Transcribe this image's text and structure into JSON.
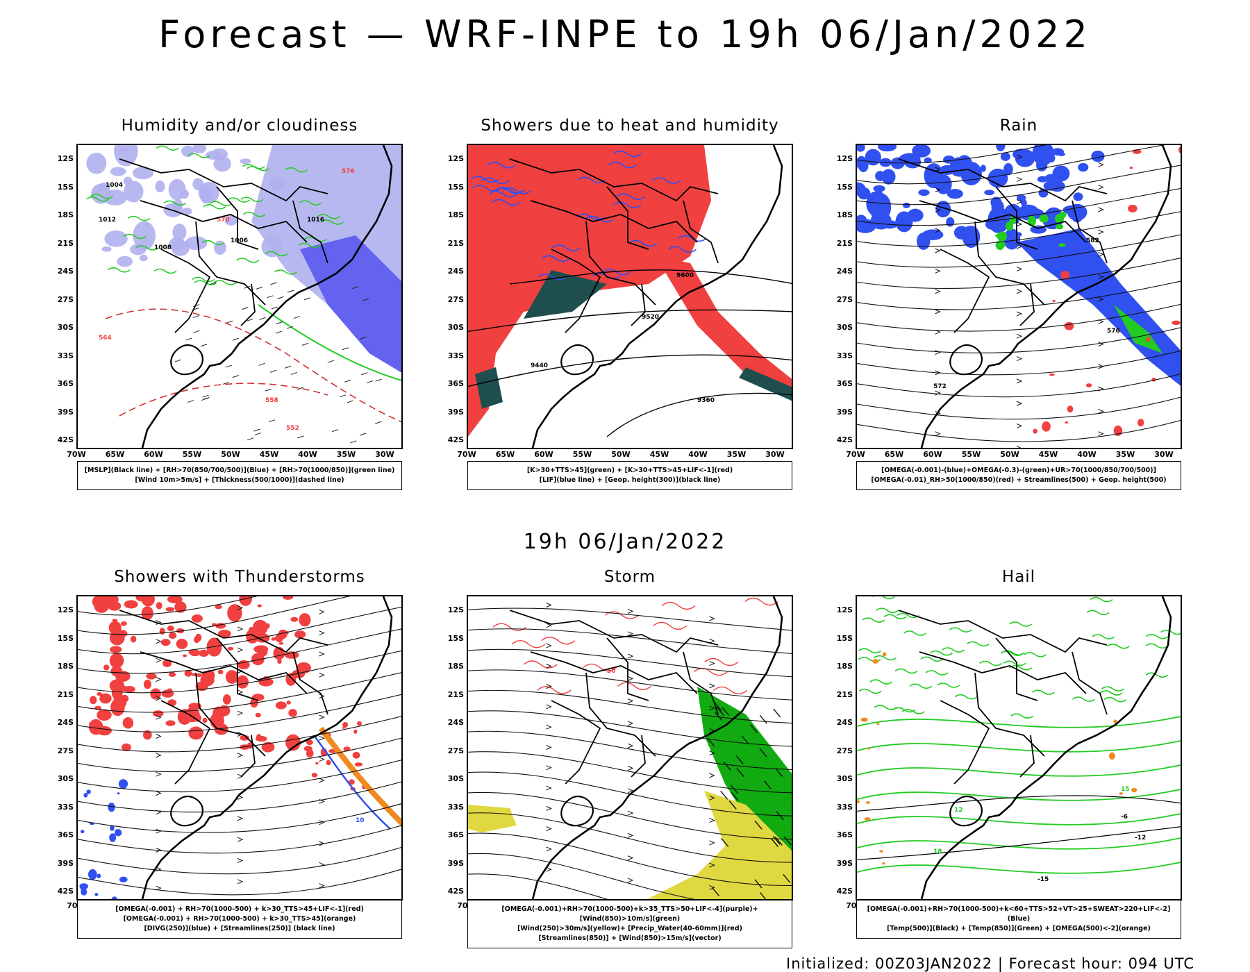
{
  "title": "Forecast — WRF-INPE to 19h 06/Jan/2022",
  "mid_title": "19h 06/Jan/2022",
  "footer": "Initialized: 00Z03JAN2022 | Forecast hour: 094 UTC",
  "axes": {
    "lat_labels": [
      "12S",
      "15S",
      "18S",
      "21S",
      "24S",
      "27S",
      "30S",
      "33S",
      "36S",
      "39S",
      "42S"
    ],
    "lon_labels": [
      "70W",
      "65W",
      "60W",
      "55W",
      "50W",
      "45W",
      "40W",
      "35W",
      "30W"
    ]
  },
  "panels": [
    {
      "id": "humidity",
      "title": "Humidity and/or cloudiness",
      "legend": [
        "[MSLP](Black line) + [RH>70(850/700/500)](Blue) + [RH>70(1000/850)](green line)",
        "[Wind 10m>5m/s] + [Thickness(500/1000)](dashed line)"
      ],
      "contour_labels": [
        "1004",
        "1012",
        "1008",
        "1016",
        "576",
        "570",
        "558",
        "564",
        "552",
        "1006"
      ]
    },
    {
      "id": "showers",
      "title": "Showers due to heat and humidity",
      "legend": [
        "[K>30+TTS>45](green) + [K>30+TTS>45+LIF<-1](red)",
        "[LIF](blue line) + [Geop. height(300)](black line)"
      ],
      "contour_labels": [
        "9600",
        "9520",
        "9440",
        "9360"
      ]
    },
    {
      "id": "rain",
      "title": "Rain",
      "legend": [
        "[OMEGA(-0.001)-(blue)+OMEGA(-0.3)-(green)+UR>70(1000/850/700/500)]",
        "[OMEGA(-0.01)_RH>50(1000/850)(red) + Streamlines(500) + Geop. height(500)"
      ],
      "contour_labels": [
        "582",
        "576",
        "572"
      ]
    },
    {
      "id": "thunder",
      "title": "Showers with Thunderstorms",
      "legend": [
        "[OMEGA(-0.001) + RH>70(1000-500) + k>30_TTS>45+LIF<-1](red)",
        "[OMEGA(-0.001) + RH>70(1000-500) + k>30_TTS>45](orange)",
        "[DIVG(250)](blue) + [Streamlines(250)] (black line)"
      ],
      "contour_labels": [
        "10"
      ]
    },
    {
      "id": "storm",
      "title": "Storm",
      "legend": [
        "[OMEGA(-0.001)+RH>70(1000-500)+k>35_TTS>50+LIF<-4](purple)+[Wind(850)>10m/s](green)",
        "[Wind(250)>30m/s](yellow)+ [Precip_Water(40-60mm)](red)",
        "[Streamlines(850)] + [Wind(850)>15m/s](vector)"
      ],
      "contour_labels": [
        "50"
      ]
    },
    {
      "id": "hail",
      "title": "Hail",
      "legend": [
        "[OMEGA(-0.001)+RH>70(1000-500)+k<60+TTS>52+VT>25+SWEAT>220+LIF<-2](Blue)",
        "[Temp(500)](Black) + [Temp(850)](Green) + [OMEGA(500)<-2](orange)"
      ],
      "contour_labels": [
        "-6",
        "-12",
        "-15",
        "15",
        "18",
        "12"
      ]
    }
  ],
  "colors": {
    "red": "#f04040",
    "blue": "#3050f0",
    "green": "#22cc22",
    "darkgreen": "#1f4e4e",
    "lavender": "#b0b0f0",
    "orange": "#f08a20",
    "yellow": "#e0d840",
    "lime": "#11aa11"
  }
}
